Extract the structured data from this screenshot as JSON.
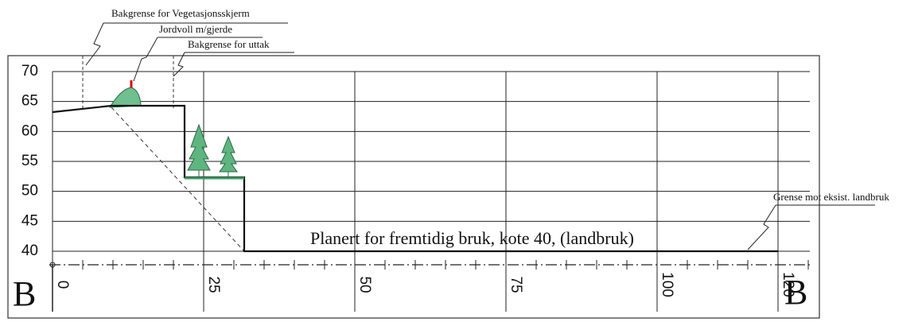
{
  "labels": {
    "vegetation": "Bakgrense for Vegetasjonsskjerm",
    "mound": "Jordvoll m/gjerde",
    "extraction": "Bakgrense for uttak",
    "planned": "Planert for fremtidig bruk, kote 40, (landbruk)",
    "border": "Grense mot eksist. landbruk",
    "section_left": "B",
    "section_right": "B"
  },
  "ylim": [
    40,
    70
  ],
  "yticks": [
    40,
    45,
    50,
    55,
    60,
    65,
    70
  ],
  "xlim": [
    0,
    120
  ],
  "xticks": [
    0,
    25,
    50,
    75,
    100,
    120
  ]
}
